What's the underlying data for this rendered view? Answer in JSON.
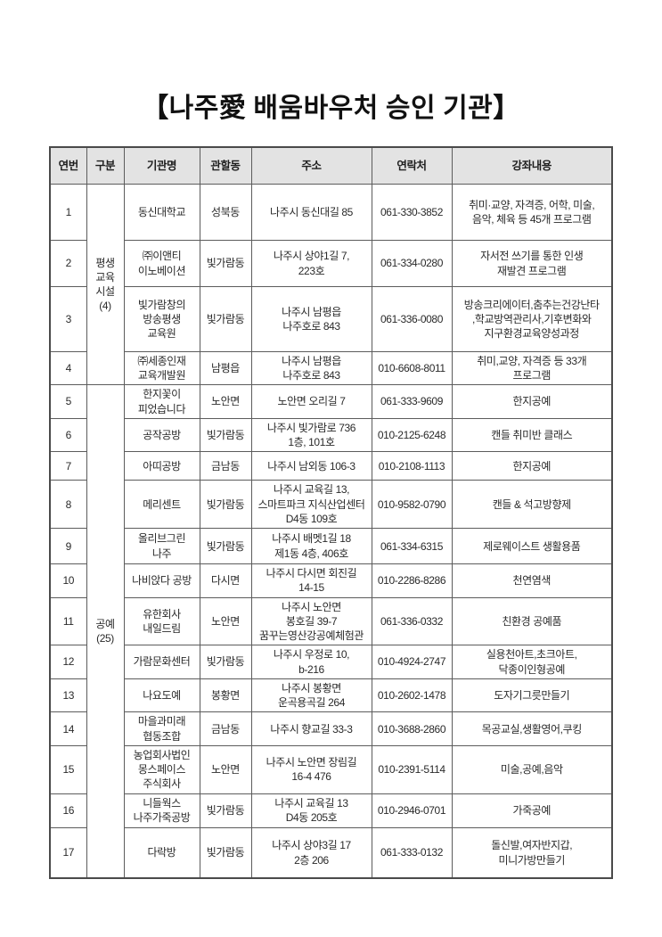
{
  "title": "【나주愛 배움바우처 승인 기관】",
  "table": {
    "headers": [
      "연번",
      "구분",
      "기관명",
      "관할동",
      "주소",
      "연락처",
      "강좌내용"
    ],
    "groups": [
      {
        "label": "평생교육시설(4)",
        "label_display": "평생\n교육\n시설\n(4)",
        "rowspan": 4
      },
      {
        "label": "공예(25)",
        "label_display": "공예\n(25)",
        "rowspan": 13
      }
    ],
    "rows": [
      {
        "no": "1",
        "name": "동신대학교",
        "district": "성북동",
        "address": "나주시 동신대길 85",
        "phone": "061-330-3852",
        "courses": "취미·교양, 자격증, 어학, 미술,\n음악, 체육 등 45개 프로그램"
      },
      {
        "no": "2",
        "name": "㈜이앤티\n이노베이션",
        "district": "빛가람동",
        "address": "나주시 상야1길 7,\n223호",
        "phone": "061-334-0280",
        "courses": "자서전 쓰기를 통한 인생\n재발견 프로그램"
      },
      {
        "no": "3",
        "name": "빛가람창의\n방송평생\n교육원",
        "district": "빛가람동",
        "address": "나주시 남평읍\n나주호로 843",
        "phone": "061-336-0080",
        "courses": "방송크리에이터,춤추는건강난타\n,학교방역관리사,기후변화와\n지구환경교육양성과정"
      },
      {
        "no": "4",
        "name": "㈜세종인재\n교육개발원",
        "district": "남평읍",
        "address": "나주시 남평읍\n나주호로 843",
        "phone": "010-6608-8011",
        "courses": "취미,교양, 자격증 등 33개\n프로그램"
      },
      {
        "no": "5",
        "name": "한지꽃이\n피었습니다",
        "district": "노안면",
        "address": "노안면 오리길 7",
        "phone": "061-333-9609",
        "courses": "한지공예"
      },
      {
        "no": "6",
        "name": "공작공방",
        "district": "빛가람동",
        "address": "나주시 빛가람로 736\n1층, 101호",
        "phone": "010-2125-6248",
        "courses": "캔들 취미반 클래스"
      },
      {
        "no": "7",
        "name": "아띠공방",
        "district": "금남동",
        "address": "나주시 남외동 106-3",
        "phone": "010-2108-1113",
        "courses": "한지공예"
      },
      {
        "no": "8",
        "name": "메리센트",
        "district": "빛가람동",
        "address": "나주시 교육길 13,\n스마트파크 지식산업센터\nD4동 109호",
        "phone": "010-9582-0790",
        "courses": "캔들 & 석고방향제"
      },
      {
        "no": "9",
        "name": "올리브그린\n나주",
        "district": "빛가람동",
        "address": "나주시 배멧1길 18\n제1동 4층, 406호",
        "phone": "061-334-6315",
        "courses": "제로웨이스트 생활용품"
      },
      {
        "no": "10",
        "name": "나비앉다 공방",
        "district": "다시면",
        "address": "나주시 다시면 회진길\n14-15",
        "phone": "010-2286-8286",
        "courses": "천연염색"
      },
      {
        "no": "11",
        "name": "유한회사\n내일드림",
        "district": "노안면",
        "address": "나주시 노안면\n봉호길 39-7\n꿈꾸는영산강공예체험관",
        "phone": "061-336-0332",
        "courses": "친환경 공예품"
      },
      {
        "no": "12",
        "name": "가람문화센터",
        "district": "빛가람동",
        "address": "나주시 우정로 10,\nb-216",
        "phone": "010-4924-2747",
        "courses": "실용천아트,초크아트,\n닥종이인형공예"
      },
      {
        "no": "13",
        "name": "나요도예",
        "district": "봉황면",
        "address": "나주시 봉황면\n운곡용곡길 264",
        "phone": "010-2602-1478",
        "courses": "도자기그릇만들기"
      },
      {
        "no": "14",
        "name": "마을과미래\n협동조합",
        "district": "금남동",
        "address": "나주시 향교길 33-3",
        "phone": "010-3688-2860",
        "courses": "목공교실,생활영어,쿠킹"
      },
      {
        "no": "15",
        "name": "농업회사법인\n몽스페이스\n주식회사",
        "district": "노안면",
        "address": "나주시 노안면 장림길\n16-4 476",
        "phone": "010-2391-5114",
        "courses": "미술,공예,음악"
      },
      {
        "no": "16",
        "name": "니들웍스\n나주가죽공방",
        "district": "빛가람동",
        "address": "나주시 교육길 13\nD4동 205호",
        "phone": "010-2946-0701",
        "courses": "가죽공예"
      },
      {
        "no": "17",
        "name": "다락방",
        "district": "빛가람동",
        "address": "나주시 상야3길 17\n2층 206",
        "phone": "061-333-0132",
        "courses": "돌신발,여자반지갑,\n미니가방만들기"
      }
    ]
  }
}
